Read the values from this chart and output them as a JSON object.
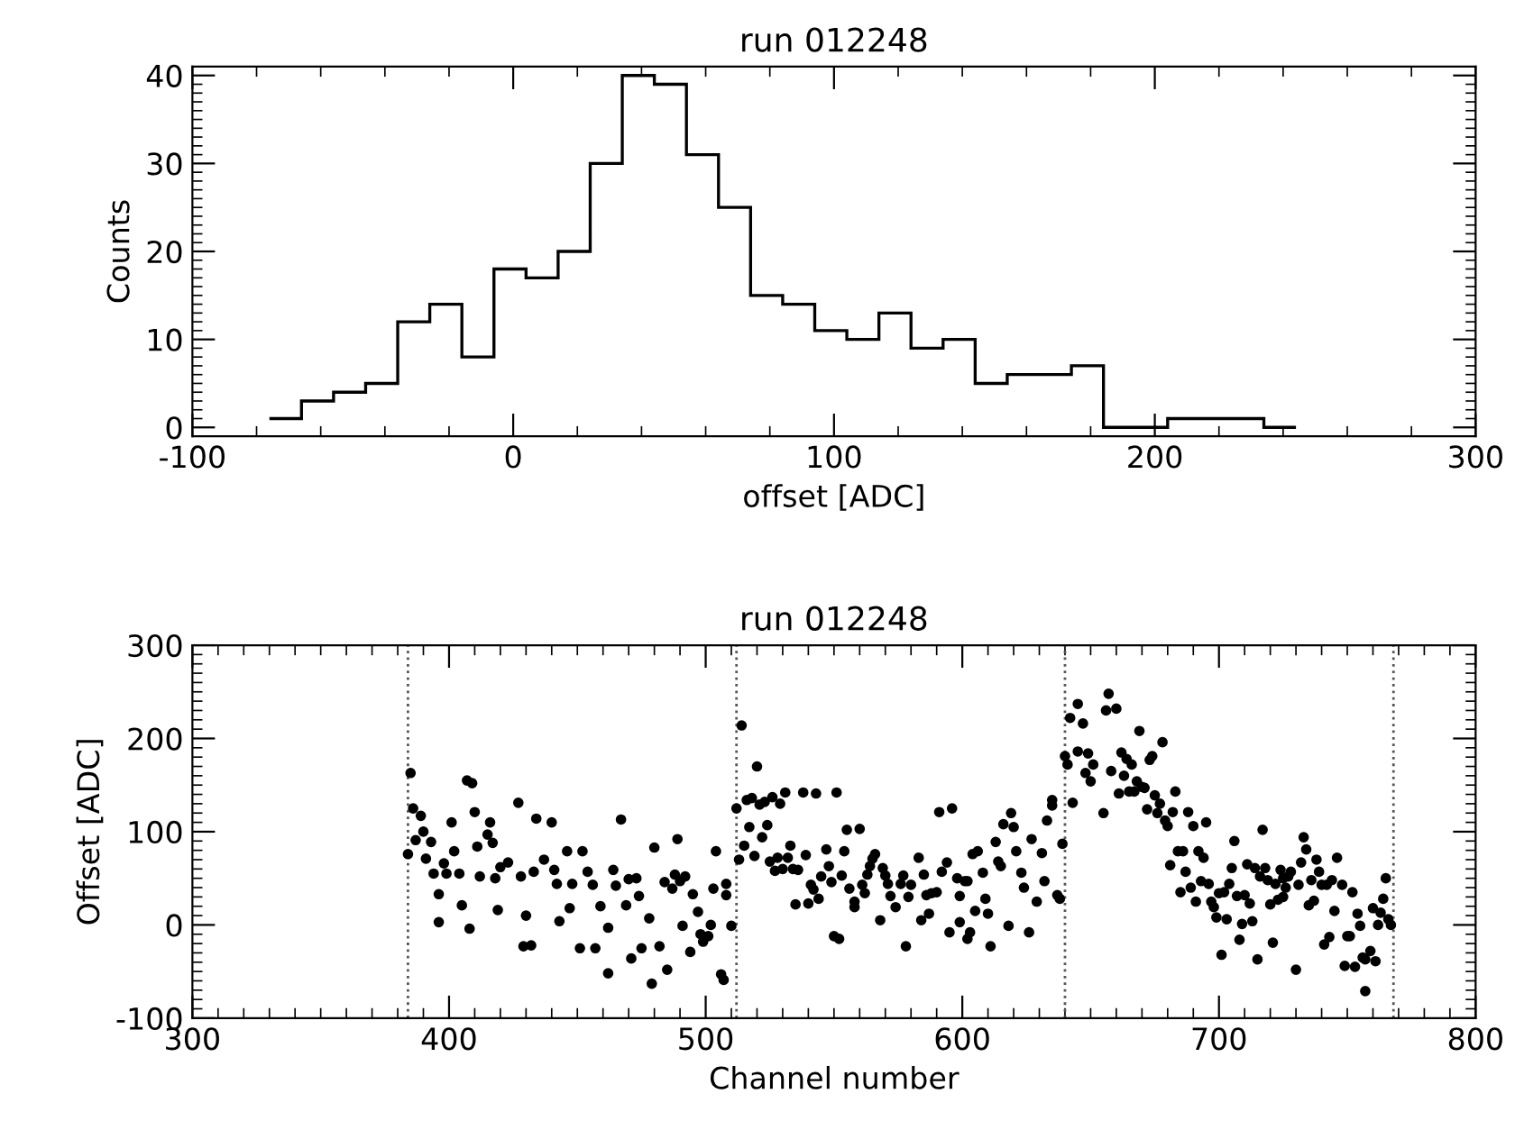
{
  "chart_data": [
    {
      "type": "histogram",
      "title": "run 012248",
      "xlabel": "offset [ADC]",
      "ylabel": "Counts",
      "bins": [
        -76,
        -66,
        -56,
        -46,
        -36,
        -26,
        -16,
        -6,
        4,
        14,
        24,
        34,
        44,
        54,
        64,
        74,
        84,
        94,
        104,
        114,
        124,
        134,
        144,
        154,
        164,
        174,
        184,
        194,
        204,
        214,
        224,
        234,
        244
      ],
      "values": [
        1,
        3,
        4,
        5,
        12,
        14,
        8,
        18,
        17,
        20,
        30,
        40,
        39,
        31,
        25,
        15,
        14,
        11,
        10,
        13,
        9,
        10,
        5,
        6,
        6,
        7,
        0,
        0,
        1,
        1,
        1,
        0
      ],
      "color": "#000000",
      "xlim": [
        -100,
        300
      ],
      "xticks": [
        -100,
        0,
        100,
        200,
        300
      ],
      "ylim": [
        -1,
        41
      ],
      "yticks": [
        0,
        10,
        20,
        30,
        40
      ],
      "grid": false,
      "legend": false
    },
    {
      "type": "scatter",
      "title": "run 012248",
      "xlabel": "Channel number",
      "ylabel": "Offset [ADC]",
      "color": "#000000",
      "marker": "circle",
      "x": [
        384,
        385,
        386,
        387,
        389,
        390,
        391,
        393,
        394,
        396,
        396,
        398,
        399,
        401,
        402,
        404,
        405,
        407,
        408,
        409,
        410,
        411,
        412,
        415,
        416,
        417,
        418,
        419,
        420,
        423,
        427,
        428,
        430,
        429,
        432,
        433,
        434,
        437,
        440,
        441,
        442,
        443,
        446,
        447,
        448,
        451,
        452,
        454,
        456,
        457,
        459,
        462,
        462,
        464,
        465,
        467,
        469,
        470,
        471,
        473,
        474,
        475,
        478,
        479,
        480,
        482,
        484,
        485,
        487,
        488,
        489,
        490,
        491,
        492,
        494,
        495,
        497,
        498,
        499,
        501,
        502,
        503,
        504,
        506,
        507,
        508,
        508,
        510,
        512,
        513,
        514,
        515,
        516,
        517,
        518,
        519,
        520,
        521,
        522,
        523,
        524,
        525,
        526,
        527,
        528,
        529,
        530,
        531,
        532,
        533,
        534,
        535,
        536,
        538,
        539,
        540,
        541,
        542,
        543,
        544,
        545,
        547,
        548,
        549,
        550,
        551,
        552,
        553,
        554,
        555,
        556,
        558,
        558,
        560,
        561,
        562,
        563,
        564,
        565,
        566,
        568,
        569,
        570,
        571,
        572,
        574,
        576,
        577,
        578,
        579,
        580,
        583,
        584,
        585,
        586,
        587,
        588,
        590,
        591,
        592,
        594,
        595,
        596,
        598,
        599,
        599,
        601,
        602,
        602,
        603,
        604,
        605,
        606,
        608,
        609,
        610,
        611,
        613,
        614,
        615,
        616,
        618,
        619,
        620,
        621,
        623,
        624,
        626,
        627,
        629,
        631,
        632,
        633,
        635,
        635,
        637,
        638,
        639,
        640,
        641,
        642,
        643,
        645,
        645,
        647,
        648,
        649,
        650,
        651,
        655,
        656,
        657,
        658,
        660,
        661,
        662,
        663,
        664,
        665,
        666,
        667,
        668,
        669,
        670,
        671,
        672,
        673,
        674,
        675,
        676,
        677,
        678,
        679,
        680,
        681,
        682,
        683,
        684,
        685,
        686,
        687,
        688,
        689,
        690,
        691,
        692,
        693,
        694,
        695,
        696,
        697,
        698,
        699,
        700,
        701,
        702,
        703,
        704,
        705,
        706,
        707,
        708,
        709,
        710,
        711,
        712,
        713,
        714,
        715,
        716,
        717,
        718,
        719,
        720,
        721,
        722,
        723,
        724,
        725,
        725,
        726,
        727,
        728,
        730,
        731,
        732,
        733,
        734,
        735,
        736,
        737,
        738,
        739,
        740,
        741,
        742,
        743,
        744,
        745,
        746,
        748,
        749,
        750,
        751,
        752,
        753,
        754,
        755,
        756,
        757,
        757,
        759,
        760,
        761,
        762,
        763,
        764,
        765,
        766,
        767
      ],
      "values": [
        76,
        163,
        125,
        91,
        117,
        100,
        71,
        89,
        55,
        33,
        3,
        66,
        55,
        110,
        79,
        55,
        21,
        155,
        -4,
        152,
        121,
        84,
        52,
        97,
        110,
        88,
        50,
        16,
        62,
        67,
        131,
        52,
        10,
        -23,
        -22,
        57,
        114,
        70,
        110,
        59,
        44,
        4,
        79,
        18,
        44,
        -25,
        79,
        57,
        43,
        -25,
        20,
        -52,
        -3,
        59,
        42,
        113,
        21,
        49,
        -36,
        50,
        31,
        -25,
        7,
        -63,
        83,
        -23,
        46,
        -48,
        39,
        54,
        92,
        47,
        -1,
        52,
        -29,
        33,
        14,
        -10,
        -18,
        -12,
        0,
        39,
        79,
        -53,
        -59,
        44,
        32,
        -1,
        125,
        70,
        214,
        85,
        134,
        105,
        136,
        74,
        170,
        129,
        94,
        132,
        107,
        68,
        137,
        58,
        72,
        130,
        60,
        142,
        72,
        85,
        60,
        22,
        59,
        142,
        75,
        23,
        43,
        38,
        141,
        28,
        52,
        81,
        63,
        46,
        -12,
        142,
        -15,
        53,
        79,
        102,
        39,
        25,
        19,
        103,
        43,
        34,
        54,
        63,
        71,
        76,
        5,
        61,
        53,
        44,
        31,
        19,
        44,
        53,
        -23,
        30,
        43,
        72,
        5,
        54,
        32,
        12,
        34,
        35,
        121,
        57,
        67,
        -8,
        125,
        50,
        3,
        31,
        47,
        -15,
        47,
        -8,
        76,
        15,
        79,
        56,
        28,
        12,
        -23,
        89,
        68,
        63,
        108,
        -1,
        120,
        105,
        79,
        56,
        40,
        -8,
        92,
        25,
        77,
        47,
        112,
        134,
        128,
        32,
        28,
        87,
        181,
        172,
        222,
        131,
        186,
        237,
        216,
        163,
        184,
        154,
        172,
        120,
        230,
        248,
        165,
        232,
        141,
        185,
        160,
        178,
        143,
        172,
        143,
        154,
        208,
        148,
        147,
        124,
        177,
        181,
        139,
        120,
        130,
        196,
        112,
        106,
        64,
        121,
        143,
        79,
        35,
        79,
        57,
        121,
        40,
        106,
        25,
        79,
        47,
        72,
        110,
        44,
        25,
        19,
        8,
        34,
        -32,
        35,
        6,
        44,
        61,
        90,
        31,
        -16,
        1,
        32,
        65,
        23,
        4,
        61,
        -37,
        52,
        102,
        61,
        48,
        22,
        -19,
        44,
        27,
        59,
        30,
        50,
        40,
        52,
        57,
        -48,
        43,
        67,
        94,
        81,
        21,
        48,
        26,
        70,
        57,
        43,
        -21,
        43,
        -13,
        48,
        15,
        72,
        43,
        -44,
        -12,
        -12,
        35,
        -45,
        12,
        -1,
        -35,
        -37,
        -71,
        -28,
        18,
        -39,
        0,
        13,
        28,
        50,
        6,
        0
      ],
      "xlim": [
        300,
        800
      ],
      "xticks": [
        300,
        400,
        500,
        600,
        700,
        800
      ],
      "ylim": [
        -100,
        300
      ],
      "yticks": [
        -100,
        0,
        100,
        200,
        300
      ],
      "grid": false,
      "legend": false,
      "ref_lines": [
        {
          "axis": "x",
          "value": 384,
          "line_style": "dotted",
          "color": "#555555"
        },
        {
          "axis": "x",
          "value": 512,
          "line_style": "dotted",
          "color": "#555555"
        },
        {
          "axis": "x",
          "value": 640,
          "line_style": "dotted",
          "color": "#555555"
        },
        {
          "axis": "x",
          "value": 768,
          "line_style": "dotted",
          "color": "#555555"
        }
      ]
    }
  ]
}
